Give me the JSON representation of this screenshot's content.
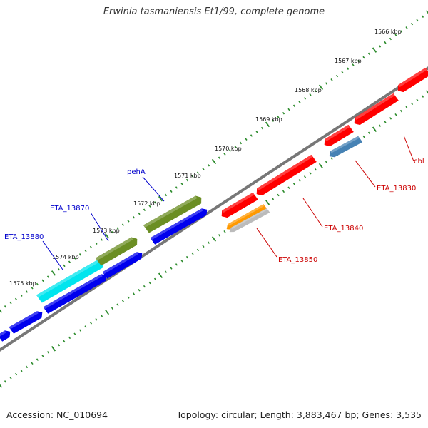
{
  "title": "Erwinia tasmaniensis Et1/99, complete genome",
  "footer": {
    "accession": "Accession: NC_010694",
    "summary": "Topology: circular; Length: 3,883,467 bp; Genes: 3,535"
  },
  "colors": {
    "backbone": "#777777",
    "ruler": "#2a8a2a",
    "forward_label": "#0000cc",
    "reverse_label": "#cc0000",
    "red_gene": "#ff0000",
    "blue_gene": "#0000ee",
    "olive_gene": "#6b8e23",
    "cyan_gene": "#00e5ee",
    "steel_gene": "#4682b4",
    "orange_gene": "#ff9900",
    "gray_gene": "#bbbbbb"
  },
  "ticks": [
    {
      "label": "1566 kbp"
    },
    {
      "label": "1567 kbp"
    },
    {
      "label": "1568 kbp"
    },
    {
      "label": "1569 kbp"
    },
    {
      "label": "1570 kbp"
    },
    {
      "label": "1571 kbp"
    },
    {
      "label": "1572 kbp"
    },
    {
      "label": "1573 kbp"
    },
    {
      "label": "1574 kbp"
    },
    {
      "label": "1575 kbp"
    }
  ],
  "gene_labels": [
    {
      "text": "pehA",
      "strand": "forward"
    },
    {
      "text": "ETA_13870",
      "strand": "forward"
    },
    {
      "text": "ETA_13880",
      "strand": "forward"
    },
    {
      "text": "cbl",
      "strand": "reverse"
    },
    {
      "text": "ETA_13830",
      "strand": "reverse"
    },
    {
      "text": "ETA_13840",
      "strand": "reverse"
    },
    {
      "text": "ETA_13850",
      "strand": "reverse"
    }
  ]
}
